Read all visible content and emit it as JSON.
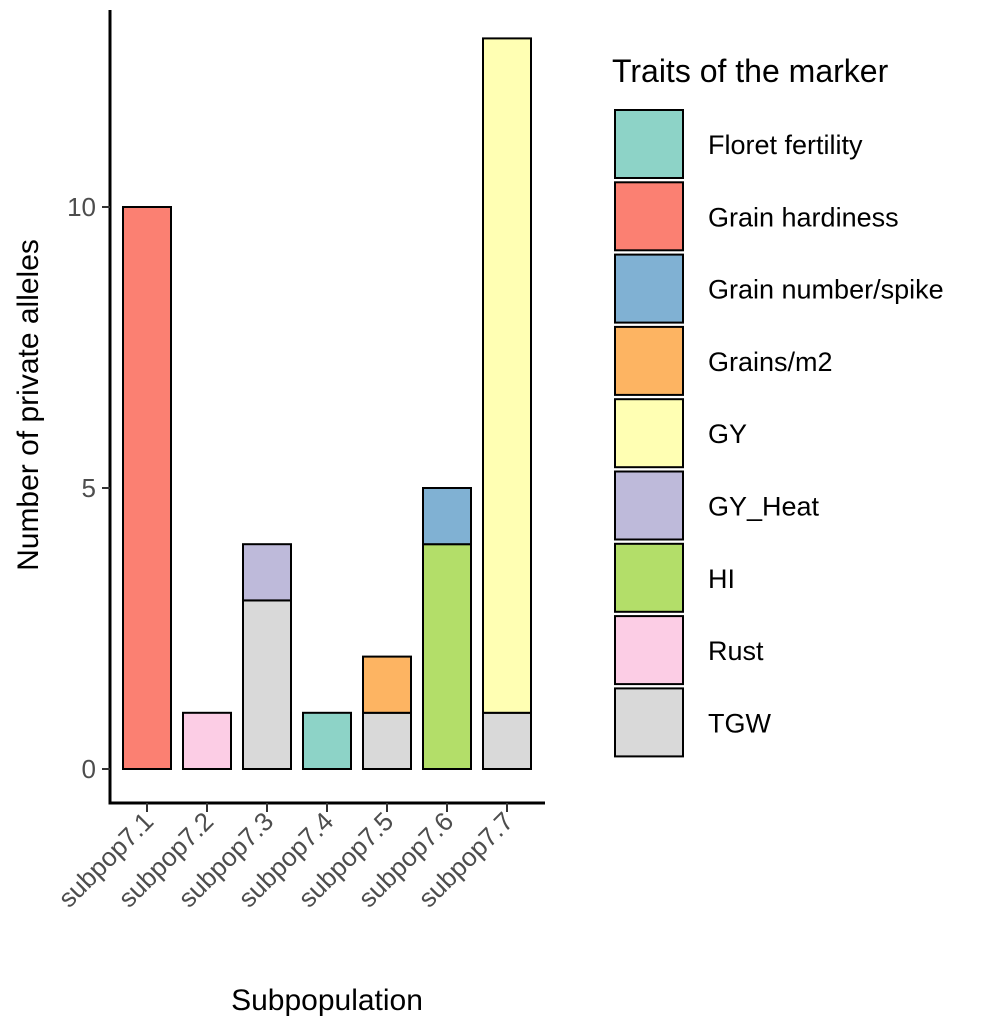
{
  "chart_data": {
    "type": "bar",
    "stacked": true,
    "categories": [
      "subpop7.1",
      "subpop7.2",
      "subpop7.3",
      "subpop7.4",
      "subpop7.5",
      "subpop7.6",
      "subpop7.7"
    ],
    "xlabel": "Subpopulation",
    "ylabel": "Number of private alleles",
    "ylim": [
      0,
      13.7
    ],
    "yticks": [
      0,
      5,
      10
    ],
    "grid": false,
    "legend": {
      "title": "Traits of the marker",
      "position": "right"
    },
    "series": [
      {
        "name": "TGW",
        "color": "#D9D9D9",
        "values": [
          0,
          0,
          3,
          0,
          1,
          0,
          1
        ]
      },
      {
        "name": "Grain hardiness",
        "color": "#FB8072",
        "values": [
          10,
          0,
          0,
          0,
          0,
          0,
          0
        ]
      },
      {
        "name": "Rust",
        "color": "#FCCDE5",
        "values": [
          0,
          1,
          0,
          0,
          0,
          0,
          0
        ]
      },
      {
        "name": "GY_Heat",
        "color": "#BEBADA",
        "values": [
          0,
          0,
          1,
          0,
          0,
          0,
          0
        ]
      },
      {
        "name": "Floret fertility",
        "color": "#8DD3C7",
        "values": [
          0,
          0,
          0,
          1,
          0,
          0,
          0
        ]
      },
      {
        "name": "Grains/m2",
        "color": "#FDB462",
        "values": [
          0,
          0,
          0,
          0,
          1,
          0,
          0
        ]
      },
      {
        "name": "HI",
        "color": "#B3DE69",
        "values": [
          0,
          0,
          0,
          0,
          0,
          4,
          0
        ]
      },
      {
        "name": "Grain number/spike",
        "color": "#80B1D3",
        "values": [
          0,
          0,
          0,
          0,
          0,
          1,
          0
        ]
      },
      {
        "name": "GY",
        "color": "#FFFFB3",
        "values": [
          0,
          0,
          0,
          0,
          0,
          0,
          12
        ]
      }
    ],
    "legend_order": [
      "Floret fertility",
      "Grain hardiness",
      "Grain number/spike",
      "Grains/m2",
      "GY",
      "GY_Heat",
      "HI",
      "Rust",
      "TGW"
    ]
  }
}
